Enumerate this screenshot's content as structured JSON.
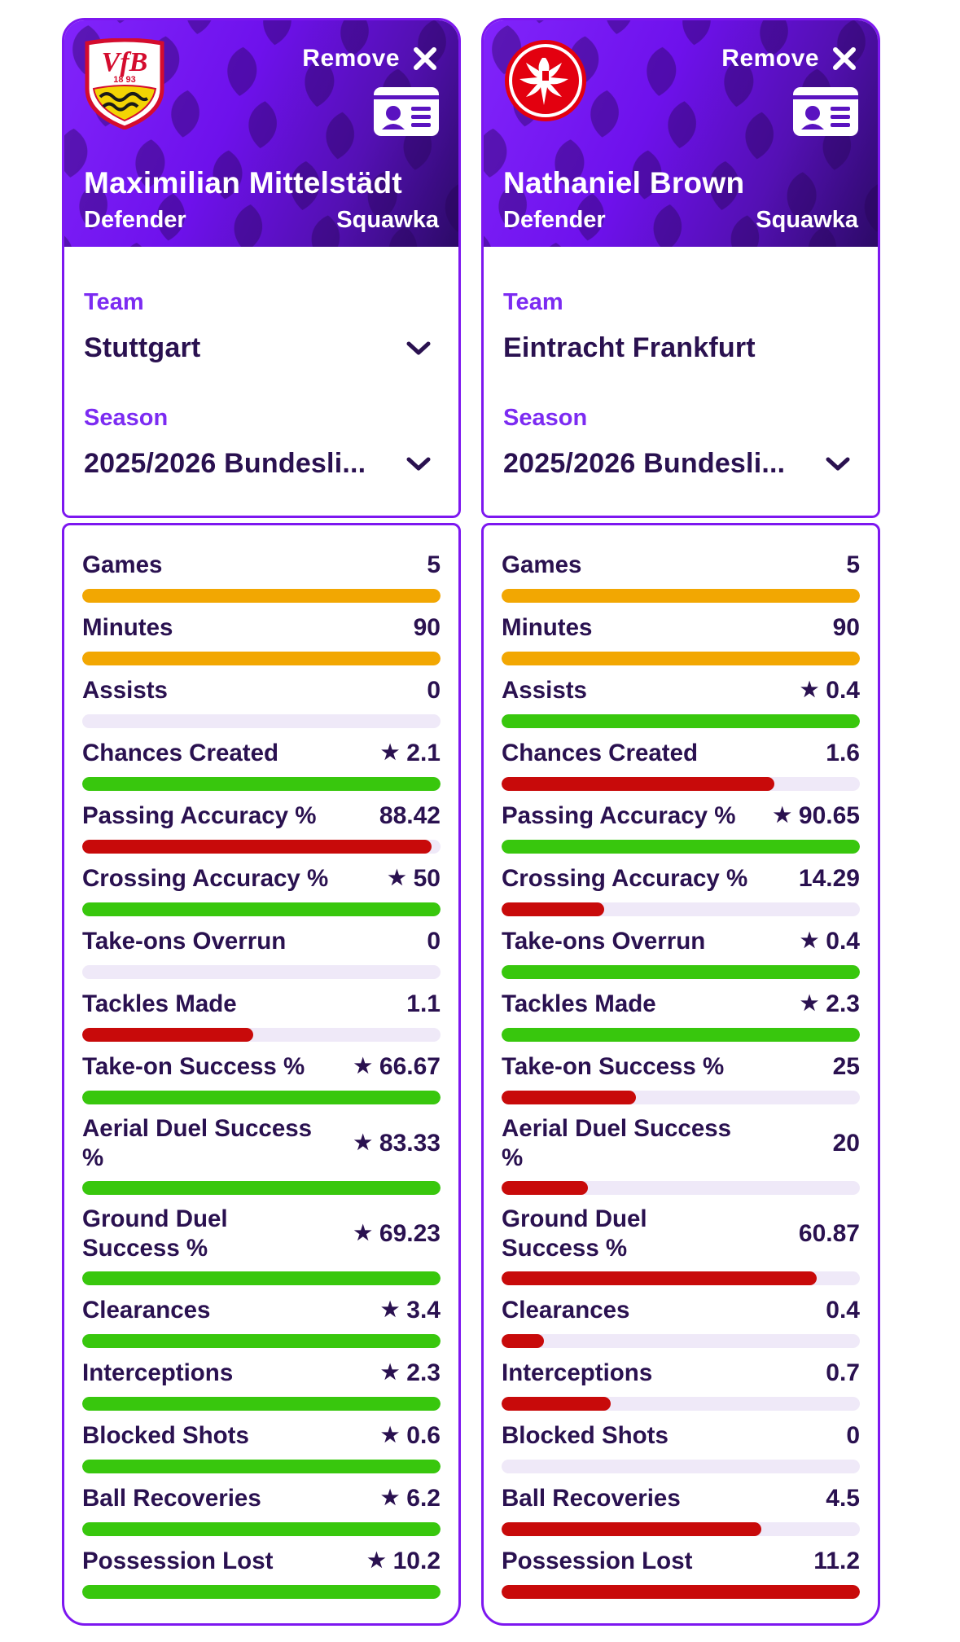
{
  "colors": {
    "green": "#38c70d",
    "red": "#c80a0a",
    "amber": "#f2a702",
    "track": "#efe9f8",
    "card_border": "#7d17f0",
    "label_purple": "#7c2bf2",
    "text_dark": "#2a1150"
  },
  "cards": [
    {
      "crest": "vfb-stuttgart-crest",
      "remove_label": "Remove",
      "player_name": "Maximilian Mittelstädt",
      "position": "Defender",
      "brand": "Squawka",
      "team_label": "Team",
      "team_value": "Stuttgart",
      "team_dropdown": true,
      "season_label": "Season",
      "season_value": "2025/2026 Bundesli...",
      "season_dropdown": true,
      "stats": [
        {
          "label": "Games",
          "value": "5",
          "star": false,
          "bar": "amber",
          "fill": 100
        },
        {
          "label": "Minutes",
          "value": "90",
          "star": false,
          "bar": "amber",
          "fill": 100
        },
        {
          "label": "Assists",
          "value": "0",
          "star": false,
          "bar": "none",
          "fill": 0
        },
        {
          "label": "Chances Created",
          "value": "2.1",
          "star": true,
          "bar": "green",
          "fill": 100
        },
        {
          "label": "Passing Accuracy %",
          "value": "88.42",
          "star": false,
          "bar": "red",
          "fill": 97.5
        },
        {
          "label": "Crossing Accuracy %",
          "value": "50",
          "star": true,
          "bar": "green",
          "fill": 100
        },
        {
          "label": "Take-ons Overrun",
          "value": "0",
          "star": false,
          "bar": "none",
          "fill": 0
        },
        {
          "label": "Tackles Made",
          "value": "1.1",
          "star": false,
          "bar": "red",
          "fill": 47.8
        },
        {
          "label": "Take-on Success %",
          "value": "66.67",
          "star": true,
          "bar": "green",
          "fill": 100
        },
        {
          "label": "Aerial Duel Success %",
          "value": "83.33",
          "star": true,
          "bar": "green",
          "fill": 100
        },
        {
          "label": "Ground Duel Success %",
          "value": "69.23",
          "star": true,
          "bar": "green",
          "fill": 100
        },
        {
          "label": "Clearances",
          "value": "3.4",
          "star": true,
          "bar": "green",
          "fill": 100
        },
        {
          "label": "Interceptions",
          "value": "2.3",
          "star": true,
          "bar": "green",
          "fill": 100
        },
        {
          "label": "Blocked Shots",
          "value": "0.6",
          "star": true,
          "bar": "green",
          "fill": 100
        },
        {
          "label": "Ball Recoveries",
          "value": "6.2",
          "star": true,
          "bar": "green",
          "fill": 100
        },
        {
          "label": "Possession Lost",
          "value": "10.2",
          "star": true,
          "bar": "green",
          "fill": 100
        }
      ]
    },
    {
      "crest": "eintracht-frankfurt-crest",
      "remove_label": "Remove",
      "player_name": "Nathaniel Brown",
      "position": "Defender",
      "brand": "Squawka",
      "team_label": "Team",
      "team_value": "Eintracht Frankfurt",
      "team_dropdown": false,
      "season_label": "Season",
      "season_value": "2025/2026 Bundesli...",
      "season_dropdown": true,
      "stats": [
        {
          "label": "Games",
          "value": "5",
          "star": false,
          "bar": "amber",
          "fill": 100
        },
        {
          "label": "Minutes",
          "value": "90",
          "star": false,
          "bar": "amber",
          "fill": 100
        },
        {
          "label": "Assists",
          "value": "0.4",
          "star": true,
          "bar": "green",
          "fill": 100
        },
        {
          "label": "Chances Created",
          "value": "1.6",
          "star": false,
          "bar": "red",
          "fill": 76.2
        },
        {
          "label": "Passing Accuracy %",
          "value": "90.65",
          "star": true,
          "bar": "green",
          "fill": 100
        },
        {
          "label": "Crossing Accuracy %",
          "value": "14.29",
          "star": false,
          "bar": "red",
          "fill": 28.6
        },
        {
          "label": "Take-ons Overrun",
          "value": "0.4",
          "star": true,
          "bar": "green",
          "fill": 100
        },
        {
          "label": "Tackles Made",
          "value": "2.3",
          "star": true,
          "bar": "green",
          "fill": 100
        },
        {
          "label": "Take-on Success %",
          "value": "25",
          "star": false,
          "bar": "red",
          "fill": 37.5
        },
        {
          "label": "Aerial Duel Success %",
          "value": "20",
          "star": false,
          "bar": "red",
          "fill": 24
        },
        {
          "label": "Ground Duel Success %",
          "value": "60.87",
          "star": false,
          "bar": "red",
          "fill": 87.9
        },
        {
          "label": "Clearances",
          "value": "0.4",
          "star": false,
          "bar": "red",
          "fill": 11.8
        },
        {
          "label": "Interceptions",
          "value": "0.7",
          "star": false,
          "bar": "red",
          "fill": 30.4
        },
        {
          "label": "Blocked Shots",
          "value": "0",
          "star": false,
          "bar": "none",
          "fill": 0
        },
        {
          "label": "Ball Recoveries",
          "value": "4.5",
          "star": false,
          "bar": "red",
          "fill": 72.6
        },
        {
          "label": "Possession Lost",
          "value": "11.2",
          "star": false,
          "bar": "red",
          "fill": 100
        }
      ]
    }
  ]
}
